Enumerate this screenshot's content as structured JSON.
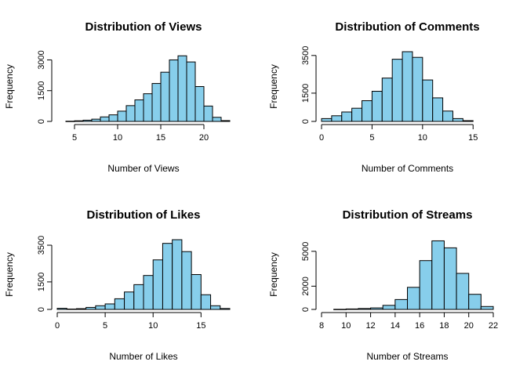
{
  "chart_data": [
    {
      "type": "bar",
      "title": "Distribution of Views",
      "xlabel": "Number of Views",
      "ylabel": "Frequency",
      "xlim": [
        3,
        23
      ],
      "ylim": [
        0,
        3400
      ],
      "x_ticks": [
        5,
        10,
        15,
        20
      ],
      "y_ticks": [
        0,
        1500,
        3000
      ],
      "bin_width": 1,
      "bins": [
        {
          "x0": 4,
          "x1": 5,
          "value": 10
        },
        {
          "x0": 5,
          "x1": 6,
          "value": 30
        },
        {
          "x0": 6,
          "x1": 7,
          "value": 60
        },
        {
          "x0": 7,
          "x1": 8,
          "value": 110
        },
        {
          "x0": 8,
          "x1": 9,
          "value": 220
        },
        {
          "x0": 9,
          "x1": 10,
          "value": 320
        },
        {
          "x0": 10,
          "x1": 11,
          "value": 500
        },
        {
          "x0": 11,
          "x1": 12,
          "value": 770
        },
        {
          "x0": 12,
          "x1": 13,
          "value": 1050
        },
        {
          "x0": 13,
          "x1": 14,
          "value": 1350
        },
        {
          "x0": 14,
          "x1": 15,
          "value": 1850
        },
        {
          "x0": 15,
          "x1": 16,
          "value": 2400
        },
        {
          "x0": 16,
          "x1": 17,
          "value": 3000
        },
        {
          "x0": 17,
          "x1": 18,
          "value": 3200
        },
        {
          "x0": 18,
          "x1": 19,
          "value": 2900
        },
        {
          "x0": 19,
          "x1": 20,
          "value": 1700
        },
        {
          "x0": 20,
          "x1": 21,
          "value": 750
        },
        {
          "x0": 21,
          "x1": 22,
          "value": 200
        },
        {
          "x0": 22,
          "x1": 23,
          "value": 40
        }
      ]
    },
    {
      "type": "bar",
      "title": "Distribution of Comments",
      "xlabel": "Number of Comments",
      "ylabel": "Frequency",
      "xlim": [
        0,
        17
      ],
      "ylim": [
        0,
        3700
      ],
      "x_ticks": [
        0,
        5,
        10,
        15
      ],
      "y_ticks": [
        0,
        1500,
        3500
      ],
      "bin_width": 1,
      "bins": [
        {
          "x0": 0,
          "x1": 1,
          "value": 150
        },
        {
          "x0": 1,
          "x1": 2,
          "value": 300
        },
        {
          "x0": 2,
          "x1": 3,
          "value": 500
        },
        {
          "x0": 3,
          "x1": 4,
          "value": 700
        },
        {
          "x0": 4,
          "x1": 5,
          "value": 1100
        },
        {
          "x0": 5,
          "x1": 6,
          "value": 1600
        },
        {
          "x0": 6,
          "x1": 7,
          "value": 2300
        },
        {
          "x0": 7,
          "x1": 8,
          "value": 3300
        },
        {
          "x0": 8,
          "x1": 9,
          "value": 3700
        },
        {
          "x0": 9,
          "x1": 10,
          "value": 3400
        },
        {
          "x0": 10,
          "x1": 11,
          "value": 2200
        },
        {
          "x0": 11,
          "x1": 12,
          "value": 1250
        },
        {
          "x0": 12,
          "x1": 13,
          "value": 550
        },
        {
          "x0": 13,
          "x1": 14,
          "value": 150
        },
        {
          "x0": 14,
          "x1": 15,
          "value": 40
        }
      ]
    },
    {
      "type": "bar",
      "title": "Distribution of Likes",
      "xlabel": "Number of Likes",
      "ylabel": "Frequency",
      "xlim": [
        0,
        18
      ],
      "ylim": [
        0,
        3800
      ],
      "x_ticks": [
        0,
        5,
        10,
        15
      ],
      "y_ticks": [
        0,
        1500,
        3500
      ],
      "bin_width": 1,
      "bins": [
        {
          "x0": 0,
          "x1": 1,
          "value": 60
        },
        {
          "x0": 1,
          "x1": 2,
          "value": 20
        },
        {
          "x0": 2,
          "x1": 3,
          "value": 40
        },
        {
          "x0": 3,
          "x1": 4,
          "value": 110
        },
        {
          "x0": 4,
          "x1": 5,
          "value": 200
        },
        {
          "x0": 5,
          "x1": 6,
          "value": 300
        },
        {
          "x0": 6,
          "x1": 7,
          "value": 580
        },
        {
          "x0": 7,
          "x1": 8,
          "value": 950
        },
        {
          "x0": 8,
          "x1": 9,
          "value": 1350
        },
        {
          "x0": 9,
          "x1": 10,
          "value": 1850
        },
        {
          "x0": 10,
          "x1": 11,
          "value": 2700
        },
        {
          "x0": 11,
          "x1": 12,
          "value": 3600
        },
        {
          "x0": 12,
          "x1": 13,
          "value": 3800
        },
        {
          "x0": 13,
          "x1": 14,
          "value": 3150
        },
        {
          "x0": 14,
          "x1": 15,
          "value": 1900
        },
        {
          "x0": 15,
          "x1": 16,
          "value": 800
        },
        {
          "x0": 16,
          "x1": 17,
          "value": 200
        },
        {
          "x0": 17,
          "x1": 18,
          "value": 50
        }
      ]
    },
    {
      "type": "bar",
      "title": "Distribution of Streams",
      "xlabel": "Number of Streams",
      "ylabel": "Frequency",
      "xlim": [
        8,
        22
      ],
      "ylim": [
        0,
        6000
      ],
      "x_ticks": [
        8,
        10,
        12,
        14,
        16,
        18,
        20,
        22
      ],
      "y_ticks": [
        0,
        2000,
        5000
      ],
      "bin_width": 1,
      "bins": [
        {
          "x0": 9,
          "x1": 10,
          "value": 10
        },
        {
          "x0": 10,
          "x1": 11,
          "value": 40
        },
        {
          "x0": 11,
          "x1": 12,
          "value": 80
        },
        {
          "x0": 12,
          "x1": 13,
          "value": 130
        },
        {
          "x0": 13,
          "x1": 14,
          "value": 350
        },
        {
          "x0": 14,
          "x1": 15,
          "value": 850
        },
        {
          "x0": 15,
          "x1": 16,
          "value": 1900
        },
        {
          "x0": 16,
          "x1": 17,
          "value": 4200
        },
        {
          "x0": 17,
          "x1": 18,
          "value": 5900
        },
        {
          "x0": 18,
          "x1": 19,
          "value": 5300
        },
        {
          "x0": 19,
          "x1": 20,
          "value": 3100
        },
        {
          "x0": 20,
          "x1": 21,
          "value": 1300
        },
        {
          "x0": 21,
          "x1": 22,
          "value": 250
        }
      ]
    }
  ]
}
